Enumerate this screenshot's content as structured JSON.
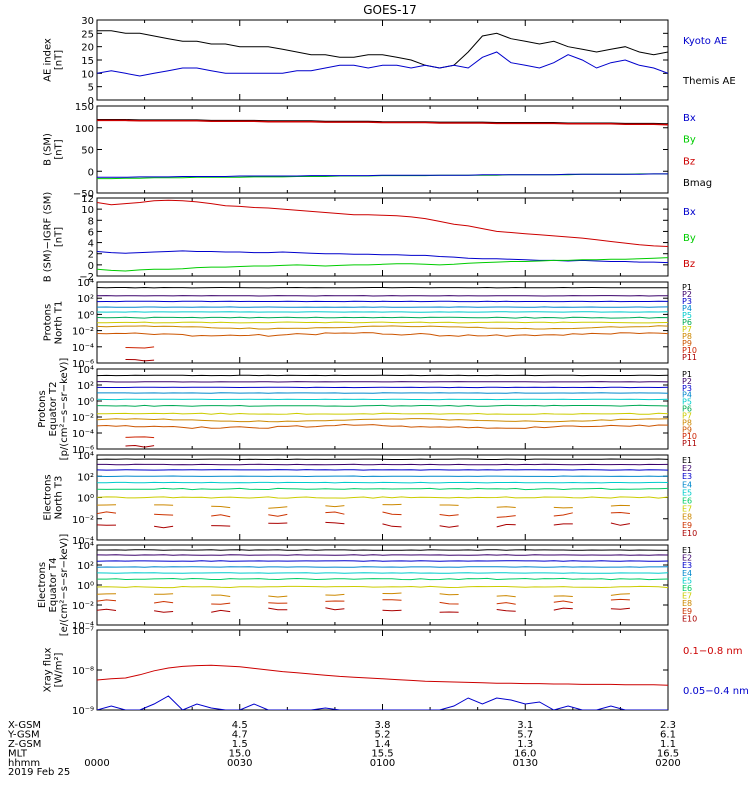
{
  "figure_title": "GOES-17",
  "date_label": "2019 Feb 25",
  "chart_data": [
    {
      "type": "line",
      "id": "ae",
      "ylabel": [
        "AE index",
        "[nT]"
      ],
      "ylim": [
        0,
        30
      ],
      "yticks": [
        0,
        5,
        10,
        15,
        20,
        25,
        30
      ],
      "ytick_labels": [
        "0",
        "5",
        "10",
        "15",
        "20",
        "25",
        "30"
      ],
      "scale": "linear",
      "series": [
        {
          "name": "Kyoto AE",
          "color": "#0000cc",
          "key": "kyoto_ae"
        },
        {
          "name": "Themis AE",
          "color": "#000000",
          "key": "themis_ae"
        }
      ]
    },
    {
      "type": "line",
      "id": "bsm",
      "ylabel": [
        "B (SM)",
        "[nT]"
      ],
      "ylim": [
        -50,
        150
      ],
      "yticks": [
        -50,
        0,
        50,
        100,
        150
      ],
      "ytick_labels": [
        "−50",
        "0",
        "50",
        "100",
        "150"
      ],
      "scale": "linear",
      "series": [
        {
          "name": "Bx",
          "color": "#0000cc",
          "key": "bx"
        },
        {
          "name": "By",
          "color": "#00cc00",
          "key": "by"
        },
        {
          "name": "Bz",
          "color": "#cc0000",
          "key": "bz"
        },
        {
          "name": "Bmag",
          "color": "#000000",
          "key": "bmag"
        }
      ]
    },
    {
      "type": "line",
      "id": "bigrf",
      "ylabel": [
        "B (SM)−IGRF (SM)",
        "[nT]"
      ],
      "ylim": [
        -2,
        12
      ],
      "yticks": [
        -2,
        0,
        2,
        4,
        6,
        8,
        10,
        12
      ],
      "ytick_labels": [
        "−2",
        "0",
        "2",
        "4",
        "6",
        "8",
        "10",
        "12"
      ],
      "scale": "linear",
      "series": [
        {
          "name": "Bx",
          "color": "#0000cc",
          "key": "bx"
        },
        {
          "name": "By",
          "color": "#00cc00",
          "key": "by"
        },
        {
          "name": "Bz",
          "color": "#cc0000",
          "key": "bz"
        }
      ]
    },
    {
      "type": "line",
      "id": "protons_t1",
      "ylabel": [
        "Protons",
        "North T1"
      ],
      "ylim": [
        -6,
        4
      ],
      "yticks": [
        -6,
        -4,
        -2,
        0,
        2,
        4
      ],
      "ytick_labels": [
        "10⁻⁶",
        "10⁻⁴",
        "10⁻²",
        "10⁰",
        "10²",
        "10⁴"
      ],
      "scale": "log",
      "legend": [
        "P1",
        "P2",
        "P3",
        "P4",
        "P5",
        "P6",
        "P7",
        "P8",
        "P9",
        "P10",
        "P11"
      ],
      "legend_colors": [
        "#000000",
        "#3a006a",
        "#0000cc",
        "#0088cc",
        "#00cccc",
        "#00aa55",
        "#cccc00",
        "#cc8800",
        "#cc5500",
        "#cc2200",
        "#aa0000"
      ],
      "levels": [
        3.3,
        2.3,
        1.6,
        0.9,
        0.3,
        -0.4,
        -1.0,
        -1.6,
        -2.5,
        -4.0,
        -5.5
      ]
    },
    {
      "type": "line",
      "id": "protons_t2",
      "ylabel": [
        "Protons",
        "Equator T2",
        "[p/(cm²−s−sr−keV)]"
      ],
      "ylim": [
        -6,
        4
      ],
      "yticks": [
        -6,
        -4,
        -2,
        0,
        2,
        4
      ],
      "ytick_labels": [
        "10⁻⁶",
        "10⁻⁴",
        "10⁻²",
        "10⁰",
        "10²",
        "10⁴"
      ],
      "scale": "log",
      "legend": [
        "P1",
        "P2",
        "P3",
        "P4",
        "P5",
        "P6",
        "P7",
        "P8",
        "P9",
        "P10",
        "P11"
      ],
      "legend_colors": [
        "#000000",
        "#3a006a",
        "#0000cc",
        "#0088cc",
        "#00cccc",
        "#00aa55",
        "#cccc00",
        "#cc8800",
        "#cc5500",
        "#cc2200",
        "#aa0000"
      ],
      "levels": [
        3.2,
        2.4,
        1.7,
        1.0,
        0.2,
        -0.6,
        -1.6,
        -2.4,
        -3.2,
        -4.5,
        -5.5
      ]
    },
    {
      "type": "line",
      "id": "electrons_t3",
      "ylabel": [
        "Electrons",
        "North T3"
      ],
      "ylim": [
        -4,
        4
      ],
      "yticks": [
        -4,
        -2,
        0,
        2,
        4
      ],
      "ytick_labels": [
        "10⁻⁴",
        "10⁻²",
        "10⁰",
        "10²",
        "10⁴"
      ],
      "scale": "log",
      "legend": [
        "E1",
        "E2",
        "E3",
        "E4",
        "E5",
        "E6",
        "E7",
        "E8",
        "E9",
        "E10"
      ],
      "legend_colors": [
        "#000000",
        "#3a006a",
        "#0000cc",
        "#0088cc",
        "#00cccc",
        "#00cc66",
        "#cccc00",
        "#cc8800",
        "#cc3300",
        "#aa0000"
      ],
      "levels": [
        3.6,
        3.1,
        2.6,
        2.0,
        1.4,
        0.8,
        0.0,
        -0.8,
        -1.6,
        -2.6
      ]
    },
    {
      "type": "line",
      "id": "electrons_t4",
      "ylabel": [
        "Electrons",
        "Equator T4",
        "[e/(cm²−s−sr−keV)]"
      ],
      "ylim": [
        -4,
        4
      ],
      "yticks": [
        -4,
        -2,
        0,
        2,
        4
      ],
      "ytick_labels": [
        "10⁻⁴",
        "10⁻²",
        "10⁰",
        "10²",
        "10⁴"
      ],
      "scale": "log",
      "legend": [
        "E1",
        "E2",
        "E3",
        "E4",
        "E5",
        "E6",
        "E7",
        "E8",
        "E9",
        "E10"
      ],
      "legend_colors": [
        "#000000",
        "#3a006a",
        "#0000cc",
        "#0088cc",
        "#00cccc",
        "#00cc66",
        "#cccc00",
        "#cc8800",
        "#cc3300",
        "#aa0000"
      ],
      "levels": [
        3.5,
        3.0,
        2.4,
        1.8,
        1.2,
        0.6,
        -0.2,
        -1.0,
        -1.7,
        -2.5
      ]
    },
    {
      "type": "line",
      "id": "xray",
      "ylabel": [
        "Xray flux",
        "[W/m²]"
      ],
      "ylim": [
        -9,
        -7
      ],
      "yticks": [
        -9,
        -8,
        -7
      ],
      "ytick_labels": [
        "10⁻⁹",
        "10⁻⁸",
        "10⁻⁷"
      ],
      "scale": "log",
      "series": [
        {
          "name": "0.1−0.8 nm",
          "color": "#cc0000",
          "key": "long"
        },
        {
          "name": "0.05−0.4 nm",
          "color": "#0000cc",
          "key": "short"
        }
      ]
    }
  ],
  "x_axis": {
    "range_minutes": [
      0,
      120
    ],
    "ticks_minutes": [
      30,
      60,
      90,
      120
    ],
    "rows": [
      {
        "label": "X-GSM",
        "values": [
          "4.5",
          "3.8",
          "3.1",
          "2.3"
        ],
        "first": ""
      },
      {
        "label": "Y-GSM",
        "values": [
          "4.7",
          "5.2",
          "5.7",
          "6.1"
        ],
        "first": ""
      },
      {
        "label": "Z-GSM",
        "values": [
          "1.5",
          "1.4",
          "1.3",
          "1.1"
        ],
        "first": ""
      },
      {
        "label": "MLT",
        "values": [
          "15.0",
          "15.5",
          "16.0",
          "16.5"
        ],
        "first": ""
      },
      {
        "label": "hhmm",
        "values": [
          "0030",
          "0100",
          "0130",
          "0200"
        ],
        "first": "0000"
      }
    ]
  },
  "series_data": {
    "minutes": [
      0,
      3,
      6,
      9,
      12,
      15,
      18,
      21,
      24,
      27,
      30,
      33,
      36,
      39,
      42,
      45,
      48,
      51,
      54,
      57,
      60,
      63,
      66,
      69,
      72,
      75,
      78,
      81,
      84,
      87,
      90,
      93,
      96,
      99,
      102,
      105,
      108,
      111,
      114,
      117,
      120
    ],
    "kyoto_ae": [
      10,
      11,
      10,
      9,
      10,
      11,
      12,
      12,
      11,
      10,
      10,
      10,
      10,
      10,
      11,
      11,
      12,
      13,
      13,
      12,
      13,
      13,
      12,
      13,
      12,
      13,
      12,
      16,
      18,
      14,
      13,
      12,
      14,
      17,
      15,
      12,
      14,
      15,
      13,
      12,
      10
    ],
    "themis_ae": [
      26,
      26,
      25,
      25,
      24,
      23,
      22,
      22,
      21,
      21,
      20,
      20,
      20,
      19,
      18,
      17,
      17,
      16,
      16,
      17,
      17,
      16,
      15,
      13,
      12,
      13,
      18,
      24,
      25,
      23,
      22,
      21,
      22,
      20,
      19,
      18,
      19,
      20,
      18,
      17,
      18
    ],
    "bx": [
      -14,
      -14,
      -14,
      -13,
      -13,
      -13,
      -12,
      -12,
      -12,
      -12,
      -11,
      -11,
      -11,
      -11,
      -11,
      -10,
      -10,
      -10,
      -10,
      -10,
      -9,
      -9,
      -9,
      -9,
      -9,
      -9,
      -9,
      -8,
      -8,
      -8,
      -8,
      -8,
      -8,
      -7,
      -7,
      -7,
      -7,
      -7,
      -7,
      -6,
      -6
    ],
    "by": [
      -17,
      -17,
      -16,
      -16,
      -15,
      -15,
      -15,
      -14,
      -14,
      -14,
      -14,
      -13,
      -13,
      -13,
      -12,
      -12,
      -12,
      -11,
      -11,
      -11,
      -10,
      -10,
      -10,
      -10,
      -9,
      -9,
      -9,
      -9,
      -9,
      -8,
      -8,
      -8,
      -8,
      -8,
      -7,
      -7,
      -7,
      -7,
      -6,
      -6,
      -6
    ],
    "bz": [
      117,
      117,
      117,
      116,
      116,
      116,
      116,
      116,
      115,
      115,
      115,
      115,
      114,
      114,
      114,
      114,
      113,
      113,
      113,
      113,
      112,
      112,
      112,
      112,
      111,
      111,
      111,
      111,
      110,
      110,
      110,
      110,
      110,
      109,
      109,
      109,
      109,
      108,
      108,
      108,
      107
    ],
    "bmag": [
      119,
      119,
      119,
      118,
      118,
      118,
      118,
      118,
      117,
      117,
      117,
      117,
      116,
      116,
      116,
      116,
      115,
      115,
      115,
      115,
      114,
      114,
      114,
      114,
      113,
      113,
      113,
      113,
      112,
      112,
      112,
      112,
      112,
      111,
      111,
      111,
      111,
      110,
      110,
      110,
      109
    ],
    "igrf_bx": [
      2.4,
      2.2,
      2.1,
      2.2,
      2.3,
      2.4,
      2.5,
      2.4,
      2.4,
      2.3,
      2.3,
      2.2,
      2.2,
      2.3,
      2.2,
      2.1,
      2.0,
      2.0,
      1.9,
      1.9,
      1.8,
      1.8,
      1.7,
      1.7,
      1.5,
      1.4,
      1.2,
      1.1,
      1.1,
      1.0,
      0.9,
      0.8,
      0.8,
      0.7,
      0.8,
      0.7,
      0.6,
      0.6,
      0.5,
      0.5,
      0.4
    ],
    "igrf_by": [
      -0.8,
      -1.0,
      -1.1,
      -0.9,
      -0.8,
      -0.8,
      -0.7,
      -0.5,
      -0.4,
      -0.4,
      -0.3,
      -0.2,
      -0.2,
      -0.1,
      0.0,
      -0.1,
      -0.2,
      -0.1,
      0.0,
      0.0,
      0.1,
      0.2,
      0.2,
      0.1,
      0.0,
      0.1,
      0.3,
      0.4,
      0.5,
      0.6,
      0.6,
      0.7,
      0.8,
      0.8,
      0.9,
      0.9,
      1.0,
      1.0,
      1.1,
      1.2,
      1.3
    ],
    "igrf_bz": [
      11.2,
      10.8,
      11.0,
      11.2,
      11.5,
      11.6,
      11.5,
      11.3,
      11.0,
      10.6,
      10.5,
      10.3,
      10.2,
      10.0,
      9.8,
      9.6,
      9.4,
      9.2,
      9.0,
      9.0,
      8.9,
      8.8,
      8.6,
      8.3,
      7.8,
      7.3,
      7.0,
      6.5,
      6.0,
      5.8,
      5.6,
      5.4,
      5.2,
      5.0,
      4.8,
      4.5,
      4.2,
      3.9,
      3.6,
      3.4,
      3.3
    ],
    "xray_long": [
      -8.25,
      -8.22,
      -8.2,
      -8.12,
      -8.02,
      -7.95,
      -7.91,
      -7.89,
      -7.88,
      -7.9,
      -7.92,
      -7.96,
      -8.0,
      -8.04,
      -8.07,
      -8.1,
      -8.13,
      -8.16,
      -8.18,
      -8.2,
      -8.22,
      -8.24,
      -8.26,
      -8.28,
      -8.29,
      -8.3,
      -8.31,
      -8.32,
      -8.33,
      -8.33,
      -8.34,
      -8.34,
      -8.35,
      -8.35,
      -8.36,
      -8.36,
      -8.36,
      -8.37,
      -8.37,
      -8.37,
      -8.38
    ],
    "xray_short": [
      -9.0,
      -8.9,
      -9.0,
      -9.0,
      -8.85,
      -8.65,
      -9.0,
      -8.85,
      -8.95,
      -9.0,
      -9.0,
      -8.85,
      -9.0,
      -9.0,
      -9.0,
      -9.0,
      -8.95,
      -9.0,
      -9.0,
      -9.0,
      -9.0,
      -9.0,
      -9.0,
      -9.0,
      -9.0,
      -8.9,
      -8.7,
      -8.85,
      -8.7,
      -8.75,
      -8.85,
      -8.8,
      -9.0,
      -8.9,
      -9.0,
      -9.0,
      -8.9,
      -9.0,
      -9.0,
      -9.0,
      -9.0
    ]
  }
}
